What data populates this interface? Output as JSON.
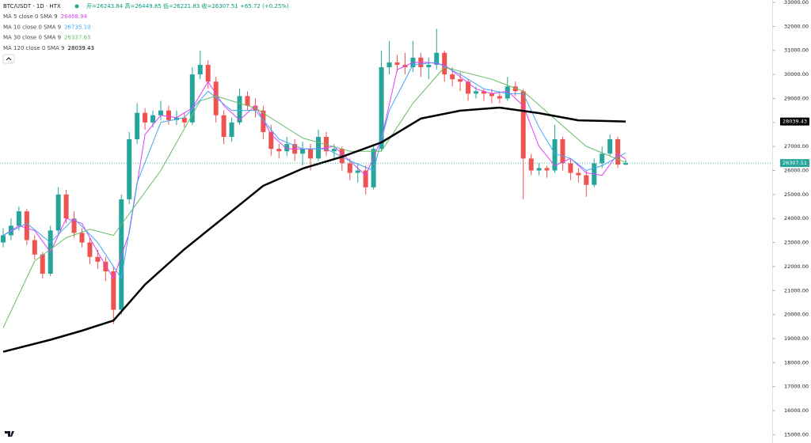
{
  "chart_data": {
    "type": "candlestick",
    "symbol": "BTC/USDT · 1D · HTX",
    "ohlc_text": "开=26243.84 高=26449.85 低=26221.83 收=26307.51 +65.72 (+0.25%)",
    "up_color": "#26a69a",
    "down_color": "#ef5350",
    "ylim": [
      14650,
      33100
    ],
    "yticks": [
      {
        "value": 15000,
        "label": "15000.00"
      },
      {
        "value": 16000,
        "label": "16000.00"
      },
      {
        "value": 17000,
        "label": "17000.00"
      },
      {
        "value": 18000,
        "label": "18000.00"
      },
      {
        "value": 19000,
        "label": "19000.00"
      },
      {
        "value": 20000,
        "label": "20000.00"
      },
      {
        "value": 21000,
        "label": "21000.00"
      },
      {
        "value": 22000,
        "label": "22000.00"
      },
      {
        "value": 23000,
        "label": "23000.00"
      },
      {
        "value": 24000,
        "label": "24000.00"
      },
      {
        "value": 25000,
        "label": "25000.00"
      },
      {
        "value": 26000,
        "label": "26000.00"
      },
      {
        "value": 27000,
        "label": "27000.00"
      },
      {
        "value": 28000,
        "label": "28000.00"
      },
      {
        "value": 29000,
        "label": "29000.00"
      },
      {
        "value": 30000,
        "label": "30000.00"
      },
      {
        "value": 31000,
        "label": "31000.00"
      },
      {
        "value": 32000,
        "label": "32000.00"
      },
      {
        "value": 33000,
        "label": "33000.00"
      }
    ],
    "last_price": {
      "value": 26307.51,
      "label": "26307.51",
      "color": "#26a69a"
    },
    "open": [
      23000,
      23300,
      23700,
      24300,
      23100,
      22500,
      21700,
      23500,
      25000,
      24000,
      23400,
      23000,
      22400,
      22200,
      21800,
      20200,
      24800,
      27300,
      28400,
      28000,
      28300,
      28500,
      28100,
      28200,
      28000,
      30000,
      30400,
      29700,
      28300,
      27400,
      28000,
      29100,
      28700,
      28500,
      27600,
      26900,
      26800,
      27100,
      26700,
      26900,
      26500,
      27400,
      26800,
      26900,
      26300,
      25900,
      26000,
      25300,
      26900,
      30300,
      30500,
      30400,
      30300,
      30700,
      30300,
      30400,
      30900,
      30000,
      29800,
      29700,
      29200,
      29300,
      29200,
      29100,
      29000,
      29500,
      29300,
      26500,
      26000,
      26100,
      26000,
      27300,
      26300,
      25900,
      25800,
      25400,
      26300,
      26700,
      27300,
      26243.84
    ],
    "high": [
      23600,
      24000,
      24500,
      24400,
      23300,
      22600,
      23700,
      25300,
      25200,
      24300,
      23600,
      23200,
      22700,
      22400,
      22000,
      25000,
      27600,
      28800,
      28600,
      28500,
      28900,
      28700,
      28500,
      28400,
      30300,
      31000,
      30600,
      29900,
      28500,
      28200,
      29400,
      29300,
      29000,
      28700,
      27900,
      27100,
      27400,
      27300,
      27200,
      27100,
      27700,
      27600,
      27100,
      27000,
      26500,
      26300,
      26200,
      27100,
      31000,
      31400,
      30800,
      30900,
      31400,
      30900,
      30700,
      31900,
      31000,
      30300,
      30100,
      29800,
      29500,
      29400,
      29400,
      29300,
      29900,
      29700,
      29400,
      26700,
      26300,
      26200,
      27900,
      27400,
      26500,
      26100,
      26000,
      26500,
      27000,
      27500,
      27400,
      26449.85
    ],
    "low": [
      22800,
      23100,
      23500,
      22900,
      22300,
      21500,
      21600,
      23300,
      23800,
      23200,
      22800,
      22100,
      21900,
      21400,
      19600,
      20000,
      24600,
      27100,
      27700,
      27800,
      28100,
      27900,
      27900,
      27800,
      27900,
      29800,
      29400,
      28000,
      27100,
      27200,
      27900,
      28500,
      28200,
      27300,
      26600,
      26500,
      26600,
      26400,
      26200,
      26000,
      26400,
      26600,
      26500,
      26000,
      25600,
      25500,
      25000,
      25200,
      26800,
      30000,
      30100,
      30000,
      30100,
      29900,
      29800,
      30200,
      29700,
      29500,
      29300,
      28900,
      29000,
      28900,
      28800,
      28800,
      28900,
      29100,
      24800,
      25800,
      25800,
      25700,
      25900,
      26000,
      25600,
      25500,
      24900,
      25300,
      26100,
      26600,
      26100,
      26221.83
    ],
    "close": [
      23300,
      23700,
      24300,
      23100,
      22500,
      21700,
      23500,
      25000,
      24000,
      23400,
      23000,
      22400,
      22200,
      21800,
      20200,
      24800,
      27300,
      28400,
      28000,
      28300,
      28500,
      28100,
      28200,
      28000,
      30000,
      30400,
      29700,
      28300,
      27400,
      28000,
      29100,
      28700,
      28500,
      27600,
      26900,
      26800,
      27100,
      26700,
      26900,
      26500,
      27400,
      26800,
      26900,
      26300,
      25900,
      26000,
      25300,
      26900,
      30300,
      30500,
      30400,
      30300,
      30700,
      30300,
      30400,
      30900,
      30000,
      29800,
      29700,
      29200,
      29300,
      29200,
      29100,
      29000,
      29500,
      29300,
      26500,
      26000,
      26100,
      26000,
      27300,
      26300,
      25900,
      25800,
      25400,
      26300,
      26700,
      27300,
      26243.84,
      26307.51
    ],
    "series": [
      {
        "name": "MA 5 close 0 SMA 9",
        "color": "#e040fb",
        "width": 1,
        "value_label": "26468.94",
        "x": [
          0,
          2,
          4,
          6,
          8,
          10,
          12,
          14,
          16,
          18,
          20,
          22,
          24,
          26,
          28,
          30,
          32,
          34,
          36,
          38,
          40,
          42,
          44,
          46,
          48,
          50,
          52,
          54,
          56,
          58,
          60,
          62,
          64,
          66,
          68,
          70,
          72,
          74,
          76,
          78,
          79
        ],
        "values": [
          23300,
          23700,
          23500,
          22600,
          24000,
          23800,
          22600,
          21500,
          23400,
          27500,
          28300,
          28200,
          28600,
          29700,
          28700,
          28100,
          28700,
          27500,
          26900,
          26900,
          26900,
          27000,
          26400,
          25800,
          27300,
          30200,
          30500,
          30500,
          30400,
          29900,
          29400,
          29200,
          29300,
          28700,
          27000,
          26200,
          26500,
          25900,
          25800,
          26700,
          26468.94
        ]
      },
      {
        "name": "MA 10 close 0 SMA 9",
        "color": "#42a5f5",
        "width": 1,
        "value_label": "26735.10",
        "x": [
          0,
          3,
          6,
          9,
          12,
          15,
          17,
          20,
          23,
          26,
          29,
          32,
          35,
          38,
          41,
          44,
          47,
          49,
          52,
          55,
          58,
          61,
          64,
          66,
          68,
          70,
          72,
          74,
          76,
          79
        ],
        "values": [
          23300,
          23800,
          23000,
          24000,
          23000,
          21500,
          25500,
          28000,
          28200,
          29300,
          28500,
          28500,
          27300,
          26900,
          26900,
          26400,
          26000,
          28500,
          30400,
          30500,
          30000,
          29400,
          29200,
          29200,
          27800,
          26700,
          26500,
          26000,
          26200,
          26735.1
        ]
      },
      {
        "name": "MA 30 close 0 SMA 9",
        "color": "#66bb6a",
        "width": 1,
        "value_label": "26337.63",
        "x": [
          0,
          4,
          8,
          11,
          14,
          20,
          25,
          27,
          32,
          38,
          44,
          48,
          52,
          56,
          62,
          66,
          70,
          74,
          79
        ],
        "values": [
          19450,
          22230,
          23200,
          23550,
          23300,
          26000,
          28900,
          29100,
          28600,
          27350,
          26800,
          26800,
          28800,
          30300,
          29800,
          29300,
          28150,
          27000,
          26337.63
        ]
      },
      {
        "name": "MA 120 close 0 SMA 9",
        "color": "#000000",
        "width": 2.5,
        "value_label": "28039.43",
        "x": [
          0,
          6,
          10,
          14,
          18,
          23,
          28,
          33,
          38,
          43,
          48,
          53,
          58,
          63,
          68,
          73,
          79
        ],
        "values": [
          18450,
          18950,
          19330,
          19750,
          21250,
          22720,
          24040,
          25360,
          26080,
          26570,
          27170,
          28160,
          28490,
          28620,
          28390,
          28090,
          28039.43
        ]
      }
    ]
  }
}
